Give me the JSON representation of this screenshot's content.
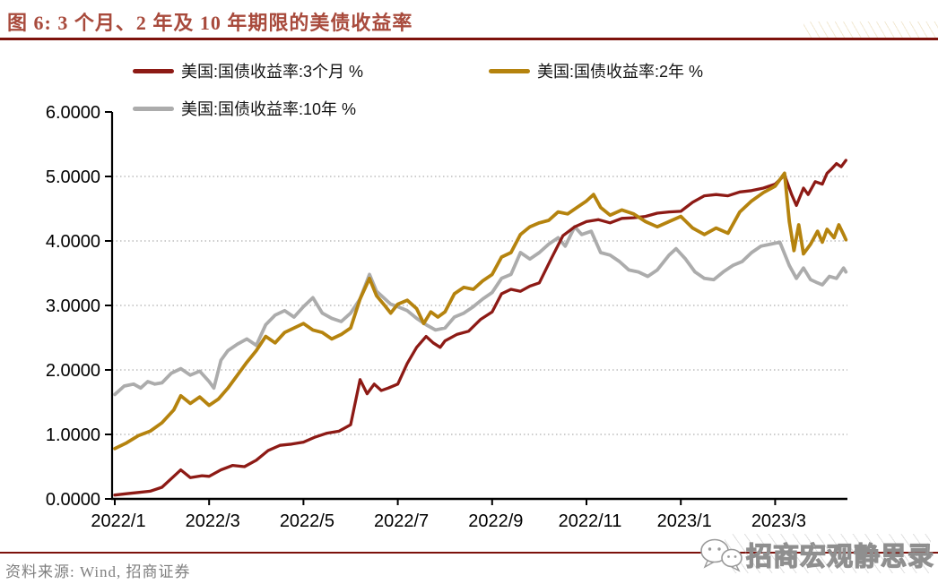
{
  "figure": {
    "title": "图 6: 3 个月、2 年及 10 年期限的美债收益率",
    "source_note": "资料来源: Wind, 招商证券",
    "watermark_text": "招商宏观静思录"
  },
  "colors": {
    "title_text": "#A84A3C",
    "accent_rule": "#7D120C",
    "axis": "#000000",
    "grid": "#AFAFAF",
    "tick_label": "#000000",
    "source_text": "#7F7F7F",
    "watermark_stroke": "#8F8F8F",
    "line_3m": "#8D1A15",
    "line_2y": "#B5830E",
    "line_10y": "#ACACAC"
  },
  "legend": [
    {
      "label": "美国:国债收益率:3个月 %",
      "color": "#8D1A15"
    },
    {
      "label": "美国:国债收益率:2年 %",
      "color": "#B5830E"
    },
    {
      "label": "美国:国债收益率:10年 %",
      "color": "#ACACAC"
    }
  ],
  "chart_data": {
    "type": "line",
    "title": "图 6: 3 个月、2 年及 10 年期限的美债收益率",
    "xlabel": "",
    "ylabel": "%",
    "x_unit": "months since 2022/1 (0 = 2022/1, daily yield series)",
    "x_range": [
      0,
      15.5
    ],
    "ylim": [
      0,
      6
    ],
    "grid": "horizontal-dotted",
    "legend_position": "top",
    "ytick_values": [
      0,
      1,
      2,
      3,
      4,
      5,
      6
    ],
    "ytick_labels": [
      "0.0000",
      "1.0000",
      "2.0000",
      "3.0000",
      "4.0000",
      "5.0000",
      "6.0000"
    ],
    "xtick_months": [
      0,
      2,
      4,
      6,
      8,
      10,
      12,
      14
    ],
    "xtick_labels": [
      "2022/1",
      "2022/3",
      "2022/5",
      "2022/7",
      "2022/9",
      "2022/11",
      "2023/1",
      "2023/3"
    ],
    "draw_order": [
      2,
      0,
      1
    ],
    "series": [
      {
        "name": "美国:国债收益率:3个月 %",
        "color": "#8D1A15",
        "width": 3.3,
        "points": [
          [
            0,
            0.06
          ],
          [
            0.25,
            0.08
          ],
          [
            0.5,
            0.1
          ],
          [
            0.75,
            0.12
          ],
          [
            1,
            0.18
          ],
          [
            1.25,
            0.35
          ],
          [
            1.4,
            0.45
          ],
          [
            1.6,
            0.33
          ],
          [
            1.85,
            0.36
          ],
          [
            2,
            0.35
          ],
          [
            2.25,
            0.45
          ],
          [
            2.5,
            0.52
          ],
          [
            2.75,
            0.5
          ],
          [
            3,
            0.6
          ],
          [
            3.25,
            0.75
          ],
          [
            3.5,
            0.83
          ],
          [
            3.75,
            0.85
          ],
          [
            4,
            0.88
          ],
          [
            4.25,
            0.96
          ],
          [
            4.5,
            1.02
          ],
          [
            4.75,
            1.05
          ],
          [
            5,
            1.15
          ],
          [
            5.2,
            1.85
          ],
          [
            5.35,
            1.63
          ],
          [
            5.5,
            1.78
          ],
          [
            5.65,
            1.68
          ],
          [
            5.8,
            1.72
          ],
          [
            6,
            1.78
          ],
          [
            6.2,
            2.1
          ],
          [
            6.4,
            2.35
          ],
          [
            6.6,
            2.52
          ],
          [
            6.75,
            2.42
          ],
          [
            6.9,
            2.35
          ],
          [
            7,
            2.45
          ],
          [
            7.25,
            2.55
          ],
          [
            7.5,
            2.6
          ],
          [
            7.75,
            2.78
          ],
          [
            8,
            2.9
          ],
          [
            8.2,
            3.18
          ],
          [
            8.4,
            3.25
          ],
          [
            8.6,
            3.22
          ],
          [
            8.8,
            3.3
          ],
          [
            9,
            3.35
          ],
          [
            9.25,
            3.72
          ],
          [
            9.5,
            4.08
          ],
          [
            9.75,
            4.22
          ],
          [
            10,
            4.3
          ],
          [
            10.25,
            4.33
          ],
          [
            10.5,
            4.28
          ],
          [
            10.75,
            4.35
          ],
          [
            11,
            4.36
          ],
          [
            11.25,
            4.38
          ],
          [
            11.5,
            4.43
          ],
          [
            11.75,
            4.45
          ],
          [
            12,
            4.46
          ],
          [
            12.25,
            4.6
          ],
          [
            12.5,
            4.7
          ],
          [
            12.75,
            4.72
          ],
          [
            13,
            4.7
          ],
          [
            13.25,
            4.76
          ],
          [
            13.5,
            4.78
          ],
          [
            13.75,
            4.82
          ],
          [
            14,
            4.88
          ],
          [
            14.2,
            5.02
          ],
          [
            14.35,
            4.72
          ],
          [
            14.45,
            4.55
          ],
          [
            14.6,
            4.82
          ],
          [
            14.7,
            4.72
          ],
          [
            14.85,
            4.92
          ],
          [
            15,
            4.88
          ],
          [
            15.1,
            5.05
          ],
          [
            15.2,
            5.12
          ],
          [
            15.3,
            5.2
          ],
          [
            15.4,
            5.15
          ],
          [
            15.5,
            5.25
          ]
        ]
      },
      {
        "name": "美国:国债收益率:2年 %",
        "color": "#B5830E",
        "width": 3.8,
        "points": [
          [
            0,
            0.78
          ],
          [
            0.25,
            0.87
          ],
          [
            0.5,
            0.98
          ],
          [
            0.75,
            1.05
          ],
          [
            1,
            1.18
          ],
          [
            1.25,
            1.38
          ],
          [
            1.4,
            1.6
          ],
          [
            1.6,
            1.48
          ],
          [
            1.8,
            1.58
          ],
          [
            2,
            1.45
          ],
          [
            2.2,
            1.55
          ],
          [
            2.4,
            1.72
          ],
          [
            2.6,
            1.92
          ],
          [
            2.8,
            2.12
          ],
          [
            3,
            2.3
          ],
          [
            3.2,
            2.52
          ],
          [
            3.4,
            2.42
          ],
          [
            3.6,
            2.58
          ],
          [
            3.8,
            2.65
          ],
          [
            4,
            2.72
          ],
          [
            4.2,
            2.62
          ],
          [
            4.4,
            2.58
          ],
          [
            4.6,
            2.48
          ],
          [
            4.8,
            2.55
          ],
          [
            5,
            2.65
          ],
          [
            5.2,
            3.1
          ],
          [
            5.4,
            3.42
          ],
          [
            5.55,
            3.15
          ],
          [
            5.7,
            3.02
          ],
          [
            5.85,
            2.88
          ],
          [
            6,
            3.02
          ],
          [
            6.2,
            3.08
          ],
          [
            6.4,
            2.95
          ],
          [
            6.55,
            2.72
          ],
          [
            6.7,
            2.9
          ],
          [
            6.85,
            2.82
          ],
          [
            7,
            2.9
          ],
          [
            7.2,
            3.18
          ],
          [
            7.4,
            3.28
          ],
          [
            7.6,
            3.25
          ],
          [
            7.8,
            3.38
          ],
          [
            8,
            3.48
          ],
          [
            8.2,
            3.75
          ],
          [
            8.4,
            3.82
          ],
          [
            8.6,
            4.1
          ],
          [
            8.8,
            4.22
          ],
          [
            9,
            4.28
          ],
          [
            9.2,
            4.32
          ],
          [
            9.4,
            4.45
          ],
          [
            9.6,
            4.42
          ],
          [
            9.8,
            4.52
          ],
          [
            10,
            4.62
          ],
          [
            10.15,
            4.72
          ],
          [
            10.3,
            4.52
          ],
          [
            10.5,
            4.4
          ],
          [
            10.75,
            4.48
          ],
          [
            11,
            4.42
          ],
          [
            11.25,
            4.3
          ],
          [
            11.5,
            4.22
          ],
          [
            11.75,
            4.3
          ],
          [
            12,
            4.38
          ],
          [
            12.25,
            4.2
          ],
          [
            12.5,
            4.1
          ],
          [
            12.75,
            4.2
          ],
          [
            13,
            4.12
          ],
          [
            13.25,
            4.45
          ],
          [
            13.5,
            4.62
          ],
          [
            13.75,
            4.75
          ],
          [
            14,
            4.85
          ],
          [
            14.2,
            5.05
          ],
          [
            14.3,
            4.3
          ],
          [
            14.4,
            3.85
          ],
          [
            14.5,
            4.25
          ],
          [
            14.6,
            3.8
          ],
          [
            14.75,
            3.95
          ],
          [
            14.9,
            4.15
          ],
          [
            15,
            3.98
          ],
          [
            15.1,
            4.18
          ],
          [
            15.25,
            4.05
          ],
          [
            15.35,
            4.25
          ],
          [
            15.45,
            4.1
          ],
          [
            15.5,
            4.02
          ]
        ]
      },
      {
        "name": "美国:国债收益率:10年 %",
        "color": "#ACACAC",
        "width": 3.8,
        "points": [
          [
            0,
            1.62
          ],
          [
            0.2,
            1.75
          ],
          [
            0.4,
            1.78
          ],
          [
            0.55,
            1.72
          ],
          [
            0.7,
            1.82
          ],
          [
            0.85,
            1.78
          ],
          [
            1,
            1.8
          ],
          [
            1.2,
            1.95
          ],
          [
            1.4,
            2.02
          ],
          [
            1.6,
            1.92
          ],
          [
            1.8,
            1.98
          ],
          [
            2,
            1.82
          ],
          [
            2.1,
            1.72
          ],
          [
            2.25,
            2.15
          ],
          [
            2.4,
            2.3
          ],
          [
            2.6,
            2.4
          ],
          [
            2.8,
            2.48
          ],
          [
            3,
            2.38
          ],
          [
            3.2,
            2.7
          ],
          [
            3.4,
            2.85
          ],
          [
            3.6,
            2.92
          ],
          [
            3.8,
            2.82
          ],
          [
            4,
            2.98
          ],
          [
            4.2,
            3.12
          ],
          [
            4.4,
            2.88
          ],
          [
            4.6,
            2.8
          ],
          [
            4.8,
            2.75
          ],
          [
            5,
            2.88
          ],
          [
            5.2,
            3.1
          ],
          [
            5.4,
            3.48
          ],
          [
            5.55,
            3.22
          ],
          [
            5.7,
            3.12
          ],
          [
            5.85,
            3.02
          ],
          [
            6,
            2.98
          ],
          [
            6.2,
            2.92
          ],
          [
            6.4,
            2.8
          ],
          [
            6.6,
            2.7
          ],
          [
            6.8,
            2.62
          ],
          [
            7,
            2.65
          ],
          [
            7.2,
            2.82
          ],
          [
            7.4,
            2.88
          ],
          [
            7.6,
            2.98
          ],
          [
            7.8,
            3.1
          ],
          [
            8,
            3.2
          ],
          [
            8.2,
            3.42
          ],
          [
            8.4,
            3.48
          ],
          [
            8.6,
            3.82
          ],
          [
            8.8,
            3.72
          ],
          [
            9,
            3.82
          ],
          [
            9.2,
            3.95
          ],
          [
            9.4,
            4.05
          ],
          [
            9.55,
            3.92
          ],
          [
            9.75,
            4.22
          ],
          [
            9.9,
            4.1
          ],
          [
            10.1,
            4.15
          ],
          [
            10.3,
            3.82
          ],
          [
            10.5,
            3.78
          ],
          [
            10.7,
            3.68
          ],
          [
            10.9,
            3.55
          ],
          [
            11.1,
            3.52
          ],
          [
            11.3,
            3.45
          ],
          [
            11.5,
            3.55
          ],
          [
            11.75,
            3.78
          ],
          [
            11.9,
            3.88
          ],
          [
            12.1,
            3.72
          ],
          [
            12.3,
            3.52
          ],
          [
            12.5,
            3.42
          ],
          [
            12.7,
            3.4
          ],
          [
            12.9,
            3.52
          ],
          [
            13.1,
            3.62
          ],
          [
            13.3,
            3.68
          ],
          [
            13.5,
            3.82
          ],
          [
            13.7,
            3.92
          ],
          [
            13.9,
            3.95
          ],
          [
            14.1,
            3.98
          ],
          [
            14.3,
            3.62
          ],
          [
            14.45,
            3.42
          ],
          [
            14.6,
            3.58
          ],
          [
            14.75,
            3.4
          ],
          [
            14.9,
            3.35
          ],
          [
            15,
            3.32
          ],
          [
            15.15,
            3.45
          ],
          [
            15.3,
            3.42
          ],
          [
            15.45,
            3.58
          ],
          [
            15.5,
            3.52
          ]
        ]
      }
    ]
  }
}
